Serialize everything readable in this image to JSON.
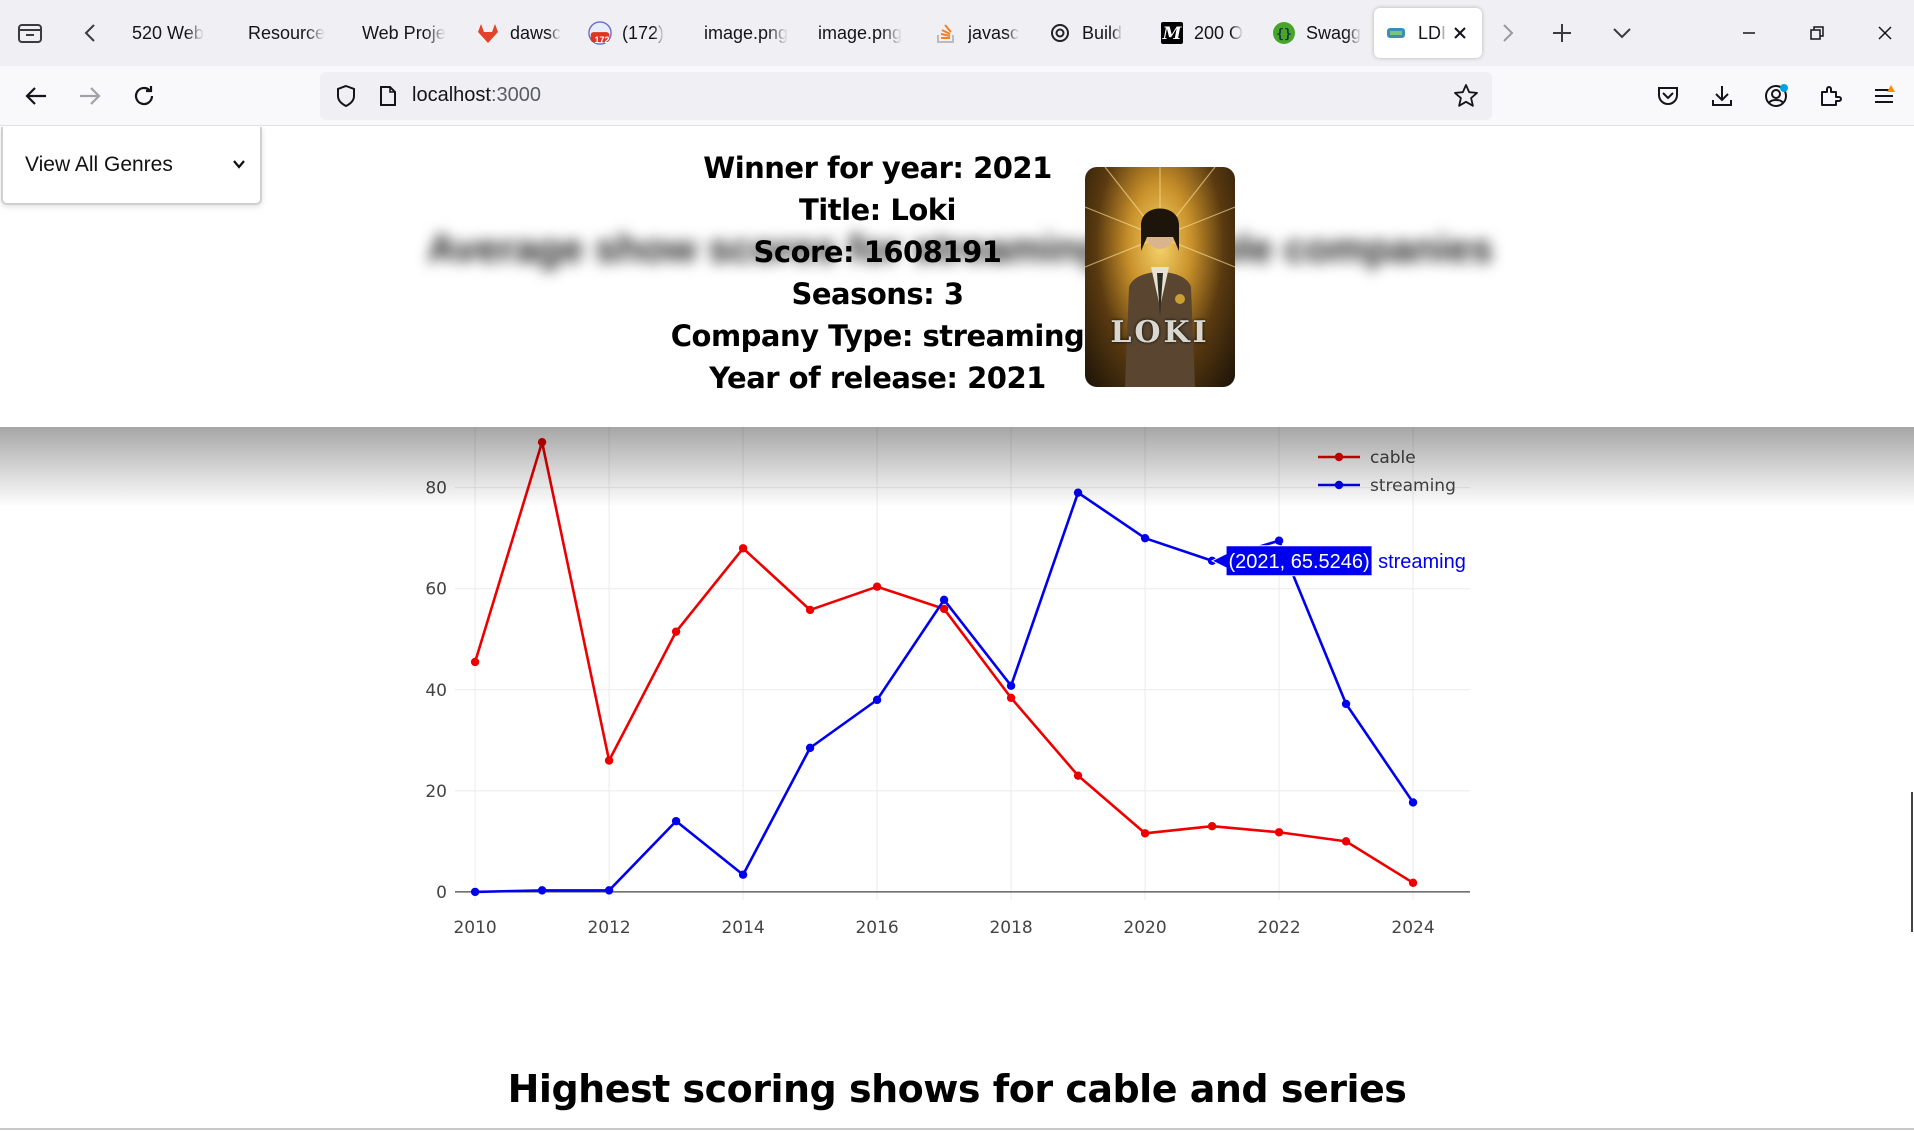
{
  "browser": {
    "tabs": [
      {
        "label": "520 Web",
        "icon": "none",
        "color": "#5b5b66"
      },
      {
        "label": "Resource",
        "icon": "none",
        "color": "#5b5b66"
      },
      {
        "label": "Web Proje",
        "icon": "none",
        "color": "#5b5b66"
      },
      {
        "label": "dawsc",
        "icon": "gitlab-icon",
        "color": "#e24329"
      },
      {
        "label": "(172)",
        "icon": "reddit-badge-icon",
        "color": "#ff4500",
        "badge": "172"
      },
      {
        "label": "image.png",
        "icon": "none",
        "color": "#5b5b66"
      },
      {
        "label": "image.png",
        "icon": "none",
        "color": "#5b5b66"
      },
      {
        "label": "javasc",
        "icon": "stackoverflow-icon",
        "color": "#f48024"
      },
      {
        "label": "Build",
        "icon": "openai-icon",
        "color": "#222222"
      },
      {
        "label": "200 O",
        "icon": "medium-icon",
        "color": "#000000"
      },
      {
        "label": "Swagg",
        "icon": "swagger-icon",
        "color": "#49a52a"
      },
      {
        "label": "LDI",
        "icon": "app-icon",
        "color": "#3a8fb7",
        "active": true
      }
    ],
    "address": {
      "host": "localhost",
      "port": ":3000"
    }
  },
  "genre_select": {
    "selected": "View All Genres"
  },
  "blurred_heading": "Average show scores for streaming vs cable companies",
  "winner": {
    "year_line": "Winner for year: 2021",
    "title_line": "Title: Loki",
    "score_line": "Score: 1608191",
    "seasons_line": "Seasons: 3",
    "company_line": "Company Type: streaming",
    "release_line": "Year of release: 2021",
    "poster_text": "LOKI"
  },
  "chart_data": {
    "type": "line",
    "x": [
      2010,
      2011,
      2012,
      2013,
      2014,
      2015,
      2016,
      2017,
      2018,
      2019,
      2020,
      2021,
      2022,
      2023,
      2024
    ],
    "series": [
      {
        "name": "cable",
        "color": "#ee0000",
        "values": [
          45.5,
          89,
          26,
          51.5,
          68,
          55.8,
          60.4,
          56,
          38.4,
          23,
          11.6,
          13,
          11.8,
          10,
          1.8
        ]
      },
      {
        "name": "streaming",
        "color": "#0000ee",
        "values": [
          0,
          0.3,
          0.3,
          14,
          3.4,
          28.5,
          38,
          57.8,
          40.8,
          79,
          70,
          65.5246,
          69.5,
          37.2,
          17.7
        ]
      }
    ],
    "xticks": [
      "2010",
      "2012",
      "2014",
      "2016",
      "2018",
      "2020",
      "2022",
      "2024"
    ],
    "yticks": [
      "0",
      "20",
      "40",
      "60",
      "80"
    ],
    "xlim": [
      2009.7,
      2024.85
    ],
    "ylim": [
      -2,
      92
    ],
    "legend": "top-right",
    "grid": true,
    "hover": {
      "text": "(2021, 65.5246)",
      "series": "streaming",
      "x": 2021,
      "y": 65.5246
    }
  },
  "bottom_heading": "Highest scoring shows for cable and series"
}
